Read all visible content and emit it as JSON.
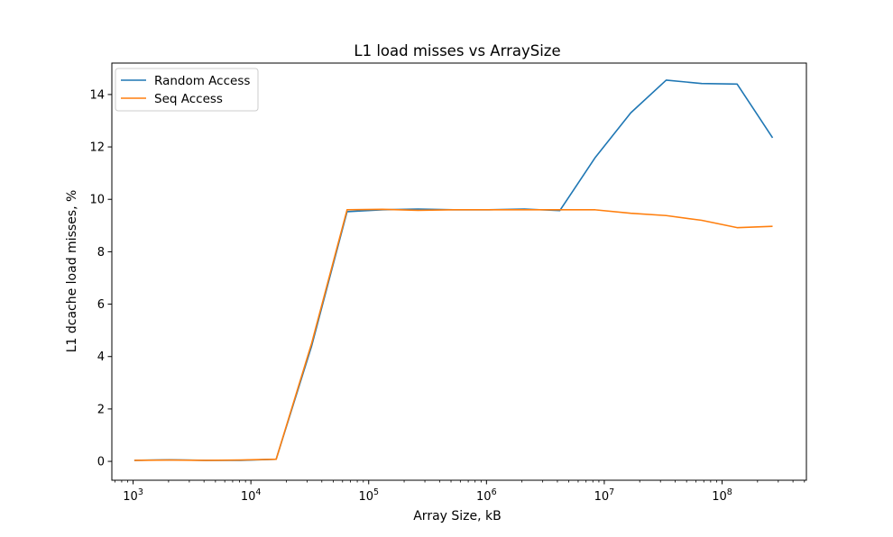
{
  "chart_data": {
    "type": "line",
    "title": "L1 load misses vs ArraySize",
    "xlabel": "Array Size, kB",
    "ylabel": "L1 dcache load misses, %",
    "xscale": "log",
    "xlim": [
      660,
      520000000
    ],
    "ylim": [
      -0.72,
      15.2
    ],
    "x": [
      1024,
      2048,
      4096,
      8192,
      16384,
      32768,
      65536,
      131072,
      262144,
      524288,
      1048576,
      2097152,
      4194304,
      8388608,
      16777216,
      33554432,
      67108864,
      134217728,
      268435456
    ],
    "series": [
      {
        "name": "Random Access",
        "color": "#1f77b4",
        "values": [
          0.04,
          0.06,
          0.04,
          0.04,
          0.08,
          4.4,
          9.53,
          9.6,
          9.63,
          9.6,
          9.6,
          9.63,
          9.57,
          11.6,
          13.3,
          14.55,
          14.42,
          14.4,
          12.35
        ]
      },
      {
        "name": "Seq Access",
        "color": "#ff7f0e",
        "values": [
          0.04,
          0.05,
          0.04,
          0.05,
          0.08,
          4.5,
          9.6,
          9.62,
          9.58,
          9.6,
          9.6,
          9.6,
          9.6,
          9.6,
          9.47,
          9.38,
          9.2,
          8.92,
          8.97
        ]
      }
    ],
    "xticks": [
      {
        "value": 1000,
        "base": "10",
        "exp": "3"
      },
      {
        "value": 10000,
        "base": "10",
        "exp": "4"
      },
      {
        "value": 100000,
        "base": "10",
        "exp": "5"
      },
      {
        "value": 1000000,
        "base": "10",
        "exp": "6"
      },
      {
        "value": 10000000,
        "base": "10",
        "exp": "7"
      },
      {
        "value": 100000000,
        "base": "10",
        "exp": "8"
      }
    ],
    "yticks": [
      0,
      2,
      4,
      6,
      8,
      10,
      12,
      14
    ],
    "grid": false,
    "legend_position": "top-left"
  }
}
